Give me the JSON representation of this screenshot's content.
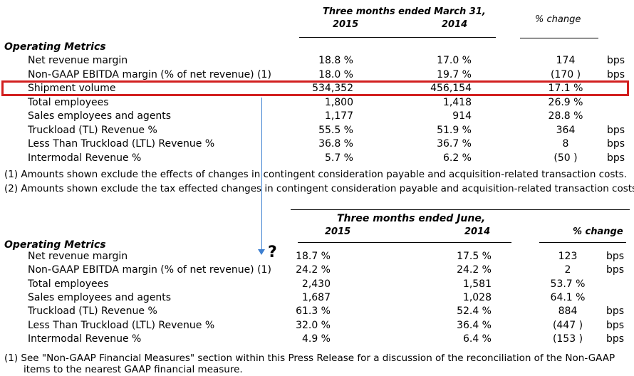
{
  "top": {
    "period_header": "Three months ended March 31,",
    "year_a": "2015",
    "year_b": "2014",
    "change_header": "% change",
    "section_title": "Operating Metrics",
    "rows": [
      {
        "label": "Net revenue margin",
        "a": "18.8 %",
        "b": "17.0 %",
        "change": "174",
        "unit": "bps"
      },
      {
        "label": "Non-GAAP EBITDA margin (% of net revenue) (1)",
        "a": "18.0 %",
        "b": "19.7 %",
        "change": "(170 )",
        "unit": "bps"
      },
      {
        "label": "Shipment volume",
        "a": "534,352",
        "b": "456,154",
        "change": "17.1 %",
        "unit": ""
      },
      {
        "label": "Total employees",
        "a": "1,800",
        "b": "1,418",
        "change": "26.9 %",
        "unit": ""
      },
      {
        "label": "Sales employees and agents",
        "a": "1,177",
        "b": "914",
        "change": "28.8 %",
        "unit": ""
      },
      {
        "label": "Truckload (TL) Revenue %",
        "a": "55.5 %",
        "b": "51.9 %",
        "change": "364",
        "unit": "bps"
      },
      {
        "label": "Less Than Truckload (LTL) Revenue %",
        "a": "36.8 %",
        "b": "36.7 %",
        "change": "8",
        "unit": "bps"
      },
      {
        "label": "Intermodal Revenue %",
        "a": "5.7 %",
        "b": "6.2 %",
        "change": "(50 )",
        "unit": "bps"
      }
    ],
    "notes": [
      "(1) Amounts shown exclude the effects of changes in contingent consideration payable and acquisition-related transaction costs.",
      "(2) Amounts shown exclude the tax effected changes in contingent consideration payable and acquisition-related transaction costs."
    ]
  },
  "bottom": {
    "period_header": "Three months ended June,",
    "year_a": "2015",
    "year_b": "2014",
    "change_header": "% change",
    "section_title": "Operating Metrics",
    "rows": [
      {
        "label": "Net revenue margin",
        "a": "18.7 %",
        "b": "17.5 %",
        "change": "123",
        "unit": "bps"
      },
      {
        "label": "Non-GAAP EBITDA margin (% of net revenue) (1)",
        "a": "24.2 %",
        "b": "24.2 %",
        "change": "2",
        "unit": "bps"
      },
      {
        "label": "Total employees",
        "a": "2,430",
        "b": "1,581",
        "change": "53.7 %",
        "unit": ""
      },
      {
        "label": "Sales employees and agents",
        "a": "1,687",
        "b": "1,028",
        "change": "64.1 %",
        "unit": ""
      },
      {
        "label": "Truckload (TL) Revenue %",
        "a": "61.3 %",
        "b": "52.4 %",
        "change": "884",
        "unit": "bps"
      },
      {
        "label": "Less Than Truckload (LTL) Revenue %",
        "a": "32.0 %",
        "b": "36.4 %",
        "change": "(447 )",
        "unit": "bps"
      },
      {
        "label": "Intermodal Revenue %",
        "a": "4.9 %",
        "b": "6.4 %",
        "change": "(153 )",
        "unit": "bps"
      }
    ],
    "notes": [
      "(1) See \"Non-GAAP Financial Measures\" section within this Press Release for a discussion of the reconciliation of the Non-GAAP",
      "items to the nearest GAAP financial measure."
    ]
  },
  "annotation": {
    "question_mark": "?",
    "highlight_color": "#d21f1f",
    "arrow_color": "#3d7fd0"
  }
}
